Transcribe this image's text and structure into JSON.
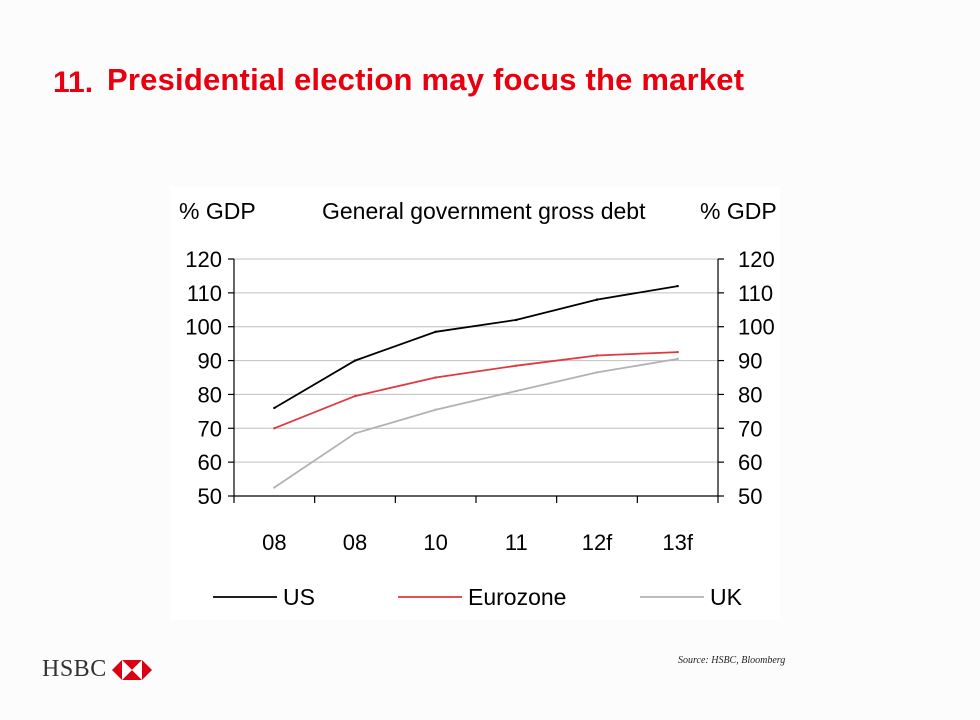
{
  "slide": {
    "number": "11.",
    "title": "Presidential election may focus the market",
    "source": "Source: HSBC, Bloomberg",
    "brand": "HSBC"
  },
  "colors": {
    "title": "#e8000f",
    "us": "#000000",
    "eurozone": "#e0393e",
    "uk": "#b2b2b2",
    "grid": "#c0c0c0"
  },
  "chart_data": {
    "type": "line",
    "title": "General government gross debt",
    "ylabel_left": "% GDP",
    "ylabel_right": "% GDP",
    "categories": [
      "08",
      "08",
      "10",
      "11",
      "12f",
      "13f"
    ],
    "ylim": [
      50,
      120
    ],
    "yticks": [
      50,
      60,
      70,
      80,
      90,
      100,
      110,
      120
    ],
    "grid": true,
    "legend_position": "bottom",
    "series": [
      {
        "name": "US",
        "color_key": "us",
        "values": [
          76,
          90,
          98.5,
          102,
          108,
          112
        ]
      },
      {
        "name": "Eurozone",
        "color_key": "eurozone",
        "values": [
          70,
          79.5,
          85,
          88.5,
          91.5,
          92.5
        ]
      },
      {
        "name": "UK",
        "color_key": "uk",
        "values": [
          52.5,
          68.5,
          75.5,
          81,
          86.5,
          90.5
        ]
      }
    ]
  }
}
